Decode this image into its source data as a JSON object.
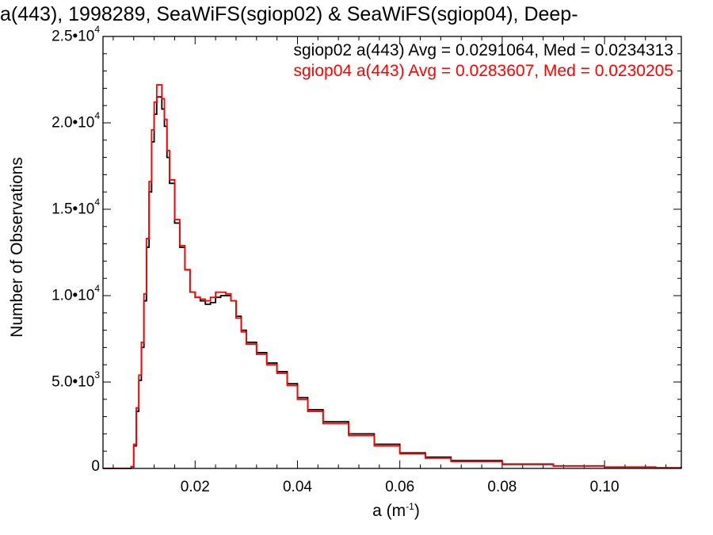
{
  "chart_data": {
    "type": "line",
    "title": "a(443), 1998289, SeaWiFS(sgiop02) & SeaWiFS(sgiop04), Deep-",
    "xlabel": "a (m",
    "xlabel_sup": "-1",
    "xlabel_suffix": ")",
    "ylabel": "Number of Observations",
    "xlim": [
      0.002,
      0.115
    ],
    "ylim": [
      0,
      25000
    ],
    "x_ticks": [
      0.02,
      0.04,
      0.06,
      0.08,
      0.1
    ],
    "x_tick_labels": [
      "0.02",
      "0.04",
      "0.06",
      "0.08",
      "0.10"
    ],
    "y_ticks": [
      {
        "value": 0,
        "mant": "0",
        "exp": ""
      },
      {
        "value": 5000,
        "mant": "5.0•10",
        "exp": "3"
      },
      {
        "value": 10000,
        "mant": "1.0•10",
        "exp": "4"
      },
      {
        "value": 15000,
        "mant": "1.5•10",
        "exp": "4"
      },
      {
        "value": 20000,
        "mant": "2.0•10",
        "exp": "4"
      },
      {
        "value": 25000,
        "mant": "2.5•10",
        "exp": "4"
      }
    ],
    "legend_position": "top-right",
    "x": [
      0.002,
      0.006,
      0.0075,
      0.008,
      0.0085,
      0.009,
      0.0095,
      0.01,
      0.0105,
      0.011,
      0.0115,
      0.012,
      0.0125,
      0.013,
      0.0135,
      0.014,
      0.0145,
      0.015,
      0.016,
      0.017,
      0.018,
      0.019,
      0.02,
      0.021,
      0.022,
      0.023,
      0.024,
      0.025,
      0.026,
      0.027,
      0.028,
      0.029,
      0.03,
      0.032,
      0.034,
      0.036,
      0.038,
      0.04,
      0.042,
      0.045,
      0.05,
      0.055,
      0.06,
      0.065,
      0.07,
      0.08,
      0.09,
      0.1,
      0.11,
      0.115
    ],
    "series": [
      {
        "name": "sgiop02 a(443) Avg = 0.0291064, Med = 0.0234313",
        "color": "#000000",
        "values": [
          0,
          0,
          100,
          1300,
          3300,
          5100,
          7000,
          9700,
          12800,
          16000,
          18900,
          20500,
          21500,
          21500,
          20800,
          19800,
          18000,
          16500,
          14200,
          12800,
          11500,
          10200,
          9900,
          9700,
          9500,
          9600,
          9900,
          10000,
          10000,
          9700,
          8800,
          8000,
          7300,
          6700,
          6100,
          5600,
          4900,
          4100,
          3400,
          2700,
          2000,
          1400,
          900,
          650,
          450,
          250,
          150,
          80,
          40,
          30
        ]
      },
      {
        "name": "sgiop04 a(443) Avg = 0.0283607, Med = 0.0230205",
        "color": "#ff0000",
        "values": [
          0,
          0,
          100,
          1400,
          3500,
          5400,
          7300,
          10100,
          13300,
          16600,
          19600,
          21200,
          22200,
          22200,
          21400,
          20200,
          18400,
          16700,
          14400,
          12900,
          11500,
          10200,
          9900,
          9800,
          9700,
          9900,
          10200,
          10200,
          10100,
          9700,
          8700,
          7900,
          7200,
          6600,
          6000,
          5500,
          4800,
          4000,
          3300,
          2600,
          1900,
          1300,
          850,
          600,
          400,
          230,
          140,
          75,
          35,
          25
        ]
      }
    ]
  }
}
